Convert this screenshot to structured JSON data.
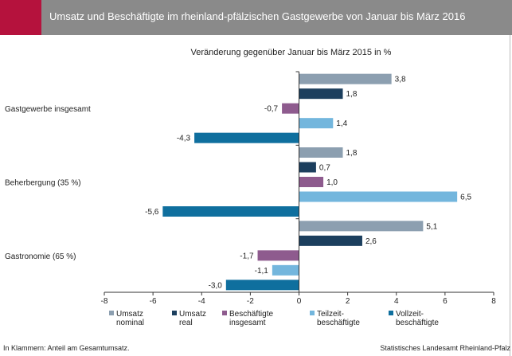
{
  "header": {
    "title": "Umsatz und Beschäftigte im rheinland-pfälzischen Gastgewerbe von Januar bis März 2016"
  },
  "footer": {
    "note": "In Klammern: Anteil am Gesamtumsatz.",
    "source": "Statistisches Landesamt Rheinland-Pfalz"
  },
  "chart_data": {
    "type": "bar",
    "orientation": "horizontal",
    "title": "",
    "subtitle": "Veränderung gegenüber Januar bis März 2015 in %",
    "xlabel": "",
    "ylabel": "",
    "xlim": [
      -8,
      8
    ],
    "x_ticks": [
      -8,
      -6,
      -4,
      -2,
      0,
      2,
      4,
      6,
      8
    ],
    "x_tick_labels": [
      "-8",
      "-6",
      "-4",
      "-2",
      "0",
      "2",
      "4",
      "6",
      "8"
    ],
    "grid": false,
    "legend_position": "bottom",
    "categories": [
      "Gastgewerbe insgesamt",
      "Beherbergung (35 %)",
      "Gastronomie (65 %)"
    ],
    "series": [
      {
        "name": "Umsatz nominal",
        "legend_lines": [
          "Umsatz",
          "nominal"
        ],
        "color": "#8c9fb0",
        "values": [
          3.8,
          1.8,
          5.1
        ],
        "labels": [
          "3,8",
          "1,8",
          "5,1"
        ]
      },
      {
        "name": "Umsatz real",
        "legend_lines": [
          "Umsatz",
          "real"
        ],
        "color": "#1c3f5e",
        "values": [
          1.8,
          0.7,
          2.6
        ],
        "labels": [
          "1,8",
          "0,7",
          "2,6"
        ]
      },
      {
        "name": "Beschäftigte insgesamt",
        "legend_lines": [
          "Beschäftigte",
          "insgesamt"
        ],
        "color": "#8e5b8e",
        "values": [
          -0.7,
          1.0,
          -1.7
        ],
        "labels": [
          "-0,7",
          "1,0",
          "-1,7"
        ]
      },
      {
        "name": "Teilzeit-beschäftigte",
        "legend_lines": [
          "Teilzeit-",
          "beschäftigte"
        ],
        "color": "#73b6dd",
        "values": [
          1.4,
          6.5,
          -1.1
        ],
        "labels": [
          "1,4",
          "6,5",
          "-1,1"
        ]
      },
      {
        "name": "Vollzeit-beschäftigte",
        "legend_lines": [
          "Vollzeit-",
          "beschäftigte"
        ],
        "color": "#0f6f9e",
        "values": [
          -4.3,
          -5.6,
          -3.0
        ],
        "labels": [
          "-4,3",
          "-5,6",
          "-3,0"
        ]
      }
    ]
  }
}
